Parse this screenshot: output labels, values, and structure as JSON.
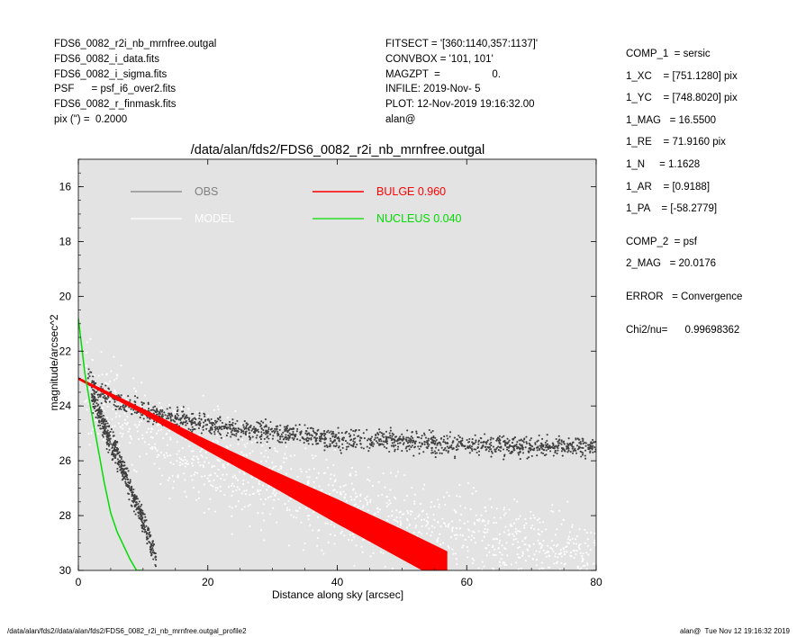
{
  "header_left": [
    "FDS6_0082_r2i_nb_mrnfree.outgal",
    "FDS6_0082_i_data.fits",
    "FDS6_0082_i_sigma.fits",
    "PSF      = psf_i6_over2.fits",
    "FDS6_0082_r_finmask.fits",
    "pix (\") =  0.2000"
  ],
  "header_mid": [
    "FITSECT = '[360:1140,357:1137]'",
    "CONVBOX = '101, 101'",
    "MAGZPT  =                  0.",
    "INFILE: 2019-Nov- 5",
    "PLOT: 12-Nov-2019 19:16:32.00",
    "alan@"
  ],
  "header_right": {
    "comp1": [
      "COMP_1  = sersic",
      "1_XC    = [751.1280] pix",
      "1_YC    = [748.8020] pix",
      "1_MAG   = 16.5500",
      "1_RE    = 71.9160 pix",
      "1_N     = 1.1628",
      "1_AR    = [0.9188]",
      "1_PA    = [-58.2779]"
    ],
    "comp2": [
      "COMP_2  = psf",
      "2_MAG   = 20.0176"
    ],
    "error": "ERROR   = Convergence",
    "chi2": "Chi2/nu=      0.99698362"
  },
  "footer_left": "/data/alan/fds2//data/alan/fds2/FDS6_0082_r2i_nb_mrnfree.outgal_profile2",
  "footer_right": "alan@  Tue Nov 12 19:16:32 2019",
  "colors": {
    "background": "#e3e3e3",
    "obs": "#3f3f3f",
    "model": "#ffffff",
    "bulge": "#ff0000",
    "nucleus": "#00dd00"
  },
  "chart_data": {
    "type": "scatter",
    "title": "/data/alan/fds2/FDS6_0082_r2i_nb_mrnfree.outgal",
    "xlabel": "Distance along sky [arcsec]",
    "ylabel": "magnitude/arcsec^2",
    "xlim": [
      0,
      80
    ],
    "ylim": [
      30,
      15
    ],
    "y_inverted": true,
    "xticks": [
      0,
      20,
      40,
      60,
      80
    ],
    "yticks": [
      16,
      18,
      20,
      22,
      24,
      26,
      28,
      30
    ],
    "grid": false,
    "legend_position": "top",
    "legend": [
      {
        "label": "OBS",
        "color": "#808080"
      },
      {
        "label": "MODEL",
        "color": "#ffffff"
      },
      {
        "label": "BULGE  0.960",
        "color": "#ff0000"
      },
      {
        "label": "NUCLEUS  0.040",
        "color": "#00dd00"
      }
    ],
    "series": [
      {
        "name": "OBS",
        "style": "points",
        "bands": [
          {
            "x": [
              1.5,
              3,
              5,
              8,
              12,
              20,
              30,
              40,
              50,
              60,
              70,
              80
            ],
            "y": [
              23.0,
              23.4,
              23.7,
              24.0,
              24.3,
              24.7,
              25.0,
              25.2,
              25.3,
              25.4,
              25.5,
              25.5
            ],
            "spread": 0.35
          },
          {
            "x": [
              2,
              4,
              6,
              8,
              10,
              12
            ],
            "y": [
              23.6,
              24.8,
              25.8,
              27.0,
              28.2,
              29.6
            ],
            "spread": 0.45
          }
        ]
      },
      {
        "name": "MODEL",
        "style": "points",
        "bands": [
          {
            "x": [
              1,
              10,
              20,
              30,
              40,
              50,
              60,
              70,
              80
            ],
            "y": [
              23.4,
              24.8,
              25.9,
              26.8,
              27.6,
              28.3,
              28.9,
              29.4,
              29.8
            ],
            "spread": 1.6
          }
        ]
      },
      {
        "name": "BULGE  0.960",
        "style": "band",
        "x": [
          0,
          10,
          20,
          30,
          40,
          50,
          57
        ],
        "y": [
          23.0,
          24.2,
          25.45,
          26.65,
          27.85,
          29.05,
          29.9
        ],
        "width": [
          0.05,
          0.1,
          0.2,
          0.3,
          0.45,
          0.55,
          0.6
        ]
      },
      {
        "name": "NUCLEUS  0.040",
        "style": "line",
        "x": [
          0,
          0.5,
          1,
          2,
          3,
          4,
          5,
          6,
          7,
          8,
          9,
          10
        ],
        "y": [
          20.8,
          21.8,
          22.8,
          24.2,
          25.5,
          26.8,
          27.9,
          28.6,
          29.1,
          29.6,
          30.0,
          30.0
        ]
      }
    ]
  }
}
